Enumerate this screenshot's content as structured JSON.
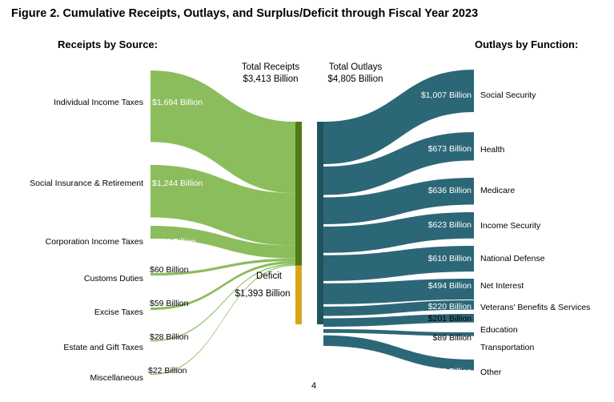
{
  "title": "Figure 2. Cumulative Receipts, Outlays, and Surplus/Deficit through Fiscal Year 2023",
  "receipts_heading": "Receipts by Source:",
  "outlays_heading": "Outlays by Function:",
  "page_number": "4",
  "colors": {
    "receipts": "#8cbd5d",
    "receipts_bar": "#4f7a17",
    "deficit": "#d9a51e",
    "outlays": "#2c6777",
    "outlays_bar": "#21535f"
  },
  "chart_data": {
    "type": "sankey",
    "unit": "Billion",
    "total_receipts": {
      "label_line1": "Total Receipts",
      "label_line2": "$3,413 Billion",
      "value": 3413
    },
    "total_outlays": {
      "label_line1": "Total Outlays",
      "label_line2": "$4,805 Billion",
      "value": 4805
    },
    "deficit": {
      "label_line1": "Deficit",
      "label_line2": "$1,393 Billion",
      "value": 1393
    },
    "receipts": [
      {
        "name": "Individual Income Taxes",
        "value": 1694,
        "value_label": "$1,694 Billion"
      },
      {
        "name": "Social Insurance & Retirement",
        "value": 1244,
        "value_label": "$1,244 Billion"
      },
      {
        "name": "Corporation Income Taxes",
        "value": 306,
        "value_label": "$306 Billion"
      },
      {
        "name": "Customs Duties",
        "value": 60,
        "value_label": "$60 Billion"
      },
      {
        "name": "Excise Taxes",
        "value": 59,
        "value_label": "$59 Billion"
      },
      {
        "name": "Estate and Gift Taxes",
        "value": 28,
        "value_label": "$28 Billion"
      },
      {
        "name": "Miscellaneous",
        "value": 22,
        "value_label": "$22 Billion"
      }
    ],
    "outlays": [
      {
        "name": "Social Security",
        "value": 1007,
        "value_label": "$1,007 Billion"
      },
      {
        "name": "Health",
        "value": 673,
        "value_label": "$673 Billion"
      },
      {
        "name": "Medicare",
        "value": 636,
        "value_label": "$636 Billion"
      },
      {
        "name": "Income Security",
        "value": 623,
        "value_label": "$623 Billion"
      },
      {
        "name": "National Defense",
        "value": 610,
        "value_label": "$610 Billion"
      },
      {
        "name": "Net Interest",
        "value": 494,
        "value_label": "$494 Billion"
      },
      {
        "name": "Veterans' Benefits & Services",
        "value": 220,
        "value_label": "$220 Billion"
      },
      {
        "name": "Education",
        "value": 201,
        "value_label": "$201 Billion"
      },
      {
        "name": "Transportation",
        "value": 89,
        "value_label": "$89 Billion"
      },
      {
        "name": "Other",
        "value": 253,
        "value_label": "$253 Billion"
      }
    ]
  }
}
